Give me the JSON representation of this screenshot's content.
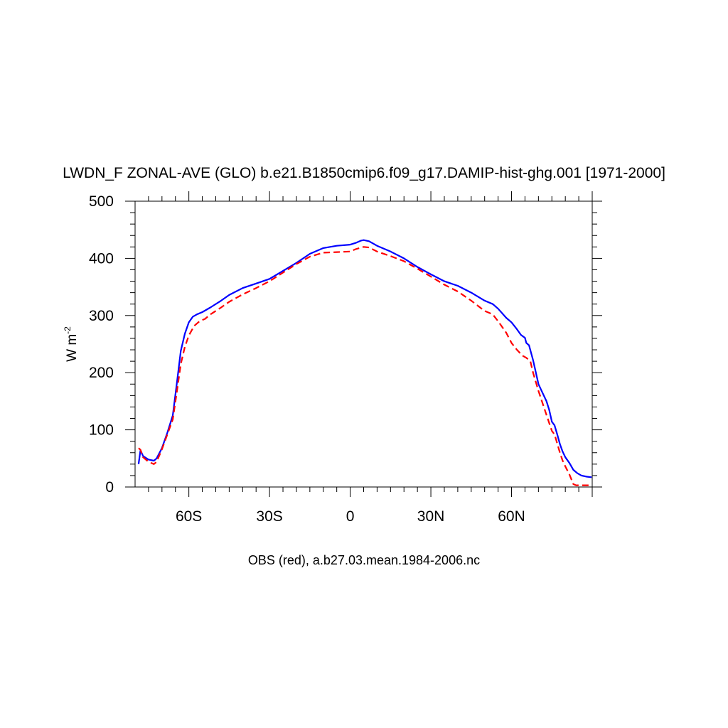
{
  "chart_data": {
    "type": "line",
    "title": "LWDN_F ZONAL-AVE (GLO) b.e21.B1850cmip6.f09_g17.DAMIP-hist-ghg.001 [1971-2000]",
    "ylabel": "W m",
    "ylabel_exponent": "-2",
    "xlabel": "OBS (red), a.b27.03.mean.1984-2006.nc",
    "xlim": [
      -80,
      90
    ],
    "ylim": [
      0,
      500
    ],
    "x_ticks": [
      {
        "value": -60,
        "label": "60S"
      },
      {
        "value": -30,
        "label": "30S"
      },
      {
        "value": 0,
        "label": "0"
      },
      {
        "value": 30,
        "label": "30N"
      },
      {
        "value": 60,
        "label": "60N"
      }
    ],
    "y_ticks": [
      0,
      100,
      200,
      300,
      400,
      500
    ],
    "series": [
      {
        "color": "#0000ff",
        "dash": "solid",
        "points": [
          [
            -78.7,
            40
          ],
          [
            -78,
            64
          ],
          [
            -77,
            54
          ],
          [
            -75,
            48
          ],
          [
            -73,
            46
          ],
          [
            -72,
            50
          ],
          [
            -70,
            68
          ],
          [
            -68,
            95
          ],
          [
            -66,
            125
          ],
          [
            -64.5,
            180
          ],
          [
            -63,
            238
          ],
          [
            -61.5,
            268
          ],
          [
            -60,
            288
          ],
          [
            -58.5,
            298
          ],
          [
            -57,
            302
          ],
          [
            -55,
            306
          ],
          [
            -52,
            314
          ],
          [
            -48,
            326
          ],
          [
            -45,
            336
          ],
          [
            -40,
            348
          ],
          [
            -35,
            356
          ],
          [
            -30,
            364
          ],
          [
            -25,
            378
          ],
          [
            -20,
            392
          ],
          [
            -15,
            408
          ],
          [
            -10,
            418
          ],
          [
            -5,
            422
          ],
          [
            0,
            424
          ],
          [
            2,
            427
          ],
          [
            4,
            431
          ],
          [
            5,
            432
          ],
          [
            7,
            430
          ],
          [
            10,
            422
          ],
          [
            15,
            412
          ],
          [
            20,
            400
          ],
          [
            25,
            385
          ],
          [
            30,
            372
          ],
          [
            35,
            360
          ],
          [
            40,
            352
          ],
          [
            45,
            340
          ],
          [
            50,
            326
          ],
          [
            53,
            320
          ],
          [
            55,
            312
          ],
          [
            58,
            296
          ],
          [
            60,
            288
          ],
          [
            62,
            276
          ],
          [
            63.5,
            266
          ],
          [
            65,
            261
          ],
          [
            65.5,
            252
          ],
          [
            66.5,
            248
          ],
          [
            68,
            222
          ],
          [
            70,
            180
          ],
          [
            71.5,
            165
          ],
          [
            73,
            150
          ],
          [
            74,
            135
          ],
          [
            75,
            114
          ],
          [
            76,
            108
          ],
          [
            77,
            92
          ],
          [
            78,
            75
          ],
          [
            79,
            62
          ],
          [
            80,
            52
          ],
          [
            81.5,
            42
          ],
          [
            83,
            30
          ],
          [
            84.5,
            24
          ],
          [
            86,
            20
          ],
          [
            88,
            18
          ],
          [
            89.8,
            17
          ]
        ]
      },
      {
        "color": "#ff0000",
        "dash": "dashed",
        "points": [
          [
            -78.7,
            68
          ],
          [
            -78,
            65
          ],
          [
            -77,
            52
          ],
          [
            -75,
            44
          ],
          [
            -73,
            40
          ],
          [
            -72,
            44
          ],
          [
            -70,
            66
          ],
          [
            -68,
            92
          ],
          [
            -66,
            118
          ],
          [
            -64.5,
            165
          ],
          [
            -63,
            215
          ],
          [
            -61.5,
            245
          ],
          [
            -60,
            265
          ],
          [
            -58,
            282
          ],
          [
            -56,
            290
          ],
          [
            -54,
            294
          ],
          [
            -52,
            302
          ],
          [
            -48,
            314
          ],
          [
            -45,
            324
          ],
          [
            -40,
            337
          ],
          [
            -35,
            348
          ],
          [
            -30,
            360
          ],
          [
            -25,
            375
          ],
          [
            -20,
            390
          ],
          [
            -15,
            403
          ],
          [
            -10,
            410
          ],
          [
            -5,
            411
          ],
          [
            0,
            412
          ],
          [
            2,
            416
          ],
          [
            5,
            420
          ],
          [
            7,
            419
          ],
          [
            10,
            412
          ],
          [
            15,
            404
          ],
          [
            20,
            395
          ],
          [
            25,
            382
          ],
          [
            30,
            368
          ],
          [
            35,
            354
          ],
          [
            40,
            342
          ],
          [
            45,
            326
          ],
          [
            50,
            308
          ],
          [
            53,
            302
          ],
          [
            55,
            290
          ],
          [
            58,
            270
          ],
          [
            60,
            252
          ],
          [
            62,
            240
          ],
          [
            64,
            230
          ],
          [
            65.5,
            226
          ],
          [
            67,
            220
          ],
          [
            68,
            200
          ],
          [
            70,
            168
          ],
          [
            72,
            140
          ],
          [
            74,
            112
          ],
          [
            75,
            98
          ],
          [
            76,
            92
          ],
          [
            77,
            76
          ],
          [
            78,
            60
          ],
          [
            79,
            46
          ],
          [
            80,
            36
          ],
          [
            81.5,
            22
          ],
          [
            83,
            5
          ],
          [
            84,
            3
          ],
          [
            86,
            3
          ],
          [
            89.8,
            3
          ]
        ]
      }
    ]
  }
}
